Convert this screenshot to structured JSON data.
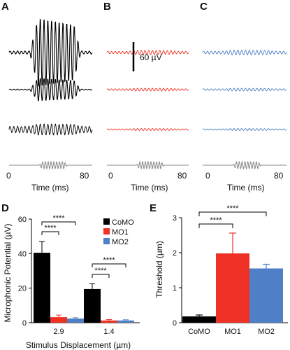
{
  "panels": {
    "A": "A",
    "B": "B",
    "C": "C",
    "D": "D",
    "E": "E"
  },
  "colors": {
    "CoMO": "#000000",
    "MO1": "#ee3124",
    "MO2": "#4f7fc4"
  },
  "waveforms": {
    "scale_bar_label": "60 µV",
    "time_axis": {
      "label": "Time (ms)",
      "start": "0",
      "end": "80"
    },
    "columns": [
      {
        "panel": "A",
        "group": "CoMO",
        "trace_color": "#000000",
        "stimulus_color": "#888888",
        "relative_amplitudes": [
          1.0,
          0.33,
          0.16
        ]
      },
      {
        "panel": "B",
        "group": "MO1",
        "trace_color": "#ee3124",
        "stimulus_color": "#888888",
        "relative_amplitudes": [
          0.06,
          0.04,
          0.03
        ]
      },
      {
        "panel": "C",
        "group": "MO2",
        "trace_color": "#4f7fc4",
        "stimulus_color": "#888888",
        "relative_amplitudes": [
          0.07,
          0.04,
          0.03
        ]
      }
    ]
  },
  "chart_data": [
    {
      "panel": "D",
      "type": "bar",
      "xlabel": "Stimulus Displacement (µm)",
      "ylabel": "Microphonic Potential (µV)",
      "ylim": [
        0,
        60
      ],
      "yticks": [
        "0",
        "20",
        "40",
        "60"
      ],
      "categories": [
        "2.9",
        "1.4"
      ],
      "legend_position": "top-right",
      "series": [
        {
          "name": "CoMO",
          "color": "#000000",
          "values": [
            40.5,
            19.5
          ],
          "errors": [
            6.5,
            3.0
          ]
        },
        {
          "name": "MO1",
          "color": "#ee3124",
          "values": [
            3.2,
            1.3
          ],
          "errors": [
            1.2,
            0.5
          ]
        },
        {
          "name": "MO2",
          "color": "#4f7fc4",
          "values": [
            2.4,
            1.3
          ],
          "errors": [
            0.5,
            0.4
          ]
        }
      ],
      "significance": [
        {
          "category": "2.9",
          "from": "CoMO",
          "to": "MO1",
          "label": "****"
        },
        {
          "category": "2.9",
          "from": "CoMO",
          "to": "MO2",
          "label": "****"
        },
        {
          "category": "1.4",
          "from": "CoMO",
          "to": "MO1",
          "label": "****"
        },
        {
          "category": "1.4",
          "from": "CoMO",
          "to": "MO2",
          "label": "****"
        }
      ]
    },
    {
      "panel": "E",
      "type": "bar",
      "ylabel": "Threshold (µm)",
      "ylim": [
        0,
        3
      ],
      "yticks": [
        "0",
        "1",
        "2",
        "3"
      ],
      "categories": [
        "CoMO",
        "MO1",
        "MO2"
      ],
      "values": [
        0.18,
        1.98,
        1.55
      ],
      "errors": [
        0.04,
        0.58,
        0.12
      ],
      "colors": [
        "#000000",
        "#ee3124",
        "#4f7fc4"
      ],
      "significance": [
        {
          "from": "CoMO",
          "to": "MO1",
          "label": "****"
        },
        {
          "from": "CoMO",
          "to": "MO2",
          "label": "****"
        }
      ]
    }
  ]
}
